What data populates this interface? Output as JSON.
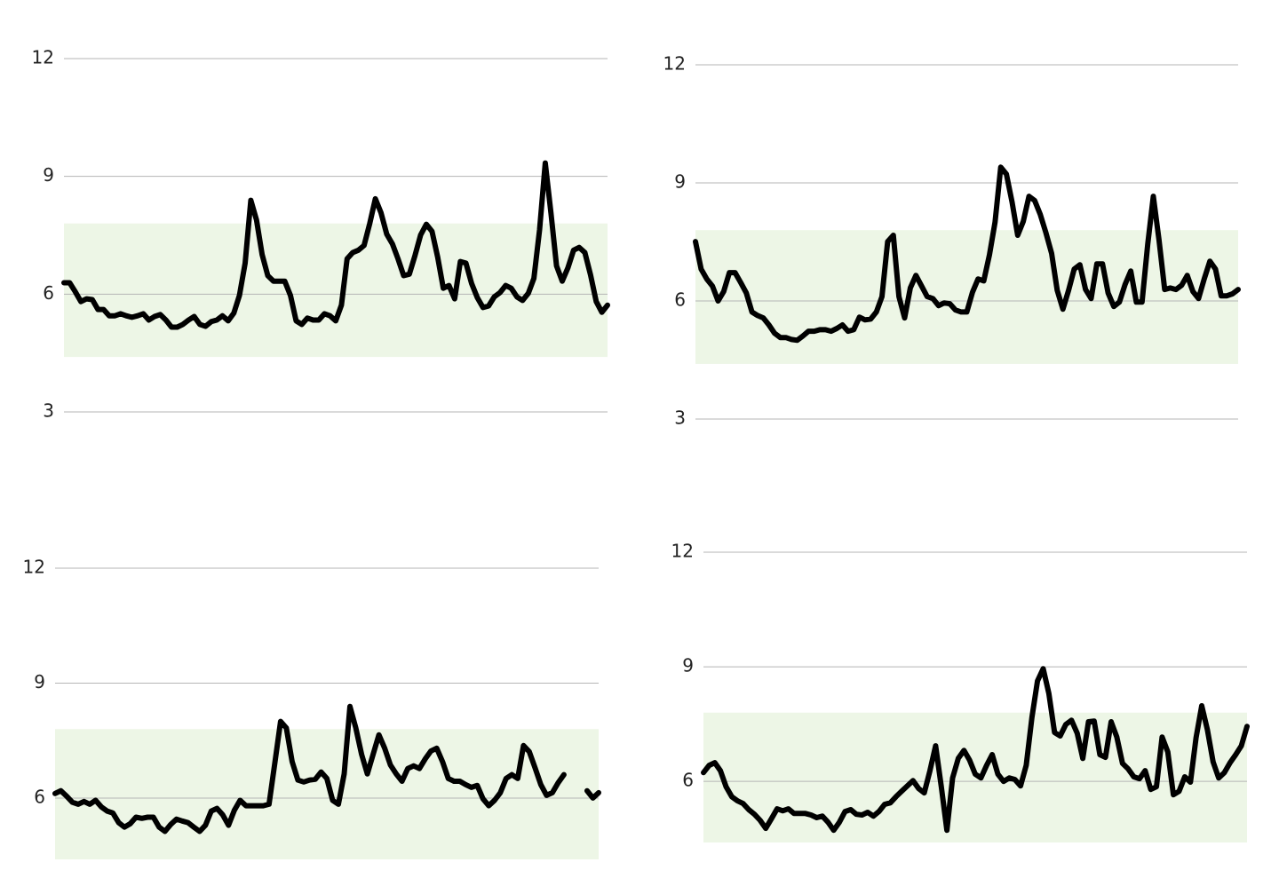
{
  "chart_data": [
    {
      "type": "line",
      "color": "#000000",
      "band": [
        4.4,
        7.8
      ],
      "band_color": "#edf6e6",
      "grid": true,
      "ylim": [
        3,
        12
      ],
      "yticks": [
        3,
        6,
        9,
        12
      ],
      "values": [
        6.29,
        6.29,
        6.06,
        5.81,
        5.88,
        5.86,
        5.61,
        5.61,
        5.45,
        5.45,
        5.5,
        5.45,
        5.41,
        5.45,
        5.5,
        5.34,
        5.43,
        5.48,
        5.34,
        5.16,
        5.16,
        5.23,
        5.34,
        5.43,
        5.23,
        5.18,
        5.3,
        5.34,
        5.45,
        5.32,
        5.52,
        5.97,
        6.79,
        8.39,
        7.89,
        7.01,
        6.47,
        6.33,
        6.33,
        6.33,
        5.97,
        5.32,
        5.23,
        5.39,
        5.34,
        5.34,
        5.5,
        5.45,
        5.32,
        5.72,
        6.9,
        7.06,
        7.12,
        7.24,
        7.8,
        8.43,
        8.07,
        7.53,
        7.28,
        6.9,
        6.47,
        6.51,
        6.99,
        7.51,
        7.78,
        7.6,
        6.94,
        6.15,
        6.22,
        5.88,
        6.83,
        6.79,
        6.27,
        5.91,
        5.66,
        5.7,
        5.93,
        6.04,
        6.22,
        6.15,
        5.93,
        5.84,
        6.02,
        6.4,
        7.64,
        9.34,
        8.07,
        6.72,
        6.33,
        6.67,
        7.12,
        7.19,
        7.06,
        6.49,
        5.81,
        5.54,
        5.72
      ]
    },
    {
      "type": "line",
      "color": "#000000",
      "band": [
        4.4,
        7.8
      ],
      "band_color": "#edf6e6",
      "grid": true,
      "ylim": [
        3,
        12
      ],
      "yticks": [
        3,
        6,
        9,
        12
      ],
      "values": [
        7.51,
        6.81,
        6.56,
        6.38,
        6.0,
        6.24,
        6.72,
        6.72,
        6.47,
        6.2,
        5.72,
        5.63,
        5.57,
        5.39,
        5.18,
        5.07,
        5.07,
        5.02,
        5.0,
        5.11,
        5.23,
        5.23,
        5.27,
        5.27,
        5.23,
        5.3,
        5.39,
        5.23,
        5.27,
        5.59,
        5.52,
        5.54,
        5.72,
        6.11,
        7.51,
        7.67,
        6.11,
        5.57,
        6.33,
        6.65,
        6.38,
        6.11,
        6.06,
        5.88,
        5.95,
        5.93,
        5.77,
        5.72,
        5.72,
        6.22,
        6.56,
        6.51,
        7.17,
        8.0,
        9.4,
        9.22,
        8.52,
        7.67,
        8.02,
        8.66,
        8.55,
        8.2,
        7.73,
        7.21,
        6.27,
        5.79,
        6.27,
        6.81,
        6.92,
        6.29,
        6.06,
        6.94,
        6.94,
        6.2,
        5.86,
        5.97,
        6.42,
        6.76,
        5.97,
        5.97,
        7.44,
        8.66,
        7.55,
        6.29,
        6.33,
        6.29,
        6.4,
        6.65,
        6.24,
        6.06,
        6.56,
        7.01,
        6.81,
        6.13,
        6.13,
        6.18,
        6.29
      ]
    },
    {
      "type": "line",
      "color": "#000000",
      "band": [
        4.4,
        7.8
      ],
      "band_color": "#edf6e6",
      "grid": true,
      "ylim": [
        4.4,
        12
      ],
      "yticks": [
        6,
        9,
        12
      ],
      "values": [
        6.12,
        6.19,
        6.05,
        5.89,
        5.84,
        5.91,
        5.84,
        5.94,
        5.77,
        5.66,
        5.61,
        5.36,
        5.24,
        5.33,
        5.5,
        5.47,
        5.5,
        5.5,
        5.24,
        5.13,
        5.31,
        5.45,
        5.4,
        5.36,
        5.24,
        5.13,
        5.29,
        5.66,
        5.73,
        5.56,
        5.29,
        5.68,
        5.94,
        5.8,
        5.8,
        5.8,
        5.8,
        5.84,
        6.91,
        8.0,
        7.83,
        6.95,
        6.47,
        6.42,
        6.47,
        6.49,
        6.68,
        6.51,
        5.94,
        5.84,
        6.63,
        8.39,
        7.83,
        7.14,
        6.63,
        7.14,
        7.65,
        7.3,
        6.86,
        6.63,
        6.44,
        6.77,
        6.84,
        6.77,
        7.02,
        7.23,
        7.3,
        6.95,
        6.51,
        6.44,
        6.44,
        6.35,
        6.28,
        6.33,
        5.98,
        5.8,
        5.94,
        6.14,
        6.51,
        6.61,
        6.51,
        7.37,
        7.21,
        6.79,
        6.35,
        6.07,
        6.14,
        6.4,
        6.61,
        null,
        null,
        null,
        6.19,
        6.0,
        6.14
      ]
    },
    {
      "type": "line",
      "color": "#000000",
      "band": [
        4.4,
        7.8
      ],
      "band_color": "#edf6e6",
      "grid": true,
      "ylim": [
        4.4,
        12
      ],
      "yticks": [
        6,
        9,
        12
      ],
      "values": [
        6.23,
        6.42,
        6.49,
        6.28,
        5.86,
        5.6,
        5.49,
        5.42,
        5.26,
        5.14,
        4.98,
        4.77,
        5.02,
        5.28,
        5.23,
        5.28,
        5.16,
        5.16,
        5.16,
        5.12,
        5.05,
        5.09,
        4.93,
        4.72,
        4.93,
        5.21,
        5.26,
        5.14,
        5.12,
        5.19,
        5.09,
        5.21,
        5.4,
        5.44,
        5.6,
        5.74,
        5.88,
        6.02,
        5.81,
        5.7,
        6.28,
        6.93,
        5.86,
        4.72,
        6.09,
        6.6,
        6.81,
        6.56,
        6.19,
        6.09,
        6.42,
        6.7,
        6.19,
        6.0,
        6.09,
        6.05,
        5.88,
        6.42,
        7.67,
        8.63,
        8.95,
        8.3,
        7.28,
        7.19,
        7.49,
        7.6,
        7.26,
        6.6,
        7.56,
        7.58,
        6.7,
        6.63,
        7.56,
        7.16,
        6.47,
        6.33,
        6.12,
        6.07,
        6.28,
        5.79,
        5.86,
        7.16,
        6.77,
        5.65,
        5.74,
        6.12,
        5.98,
        7.14,
        7.98,
        7.35,
        6.51,
        6.09,
        6.23,
        6.49,
        6.7,
        6.93,
        7.44
      ]
    }
  ]
}
